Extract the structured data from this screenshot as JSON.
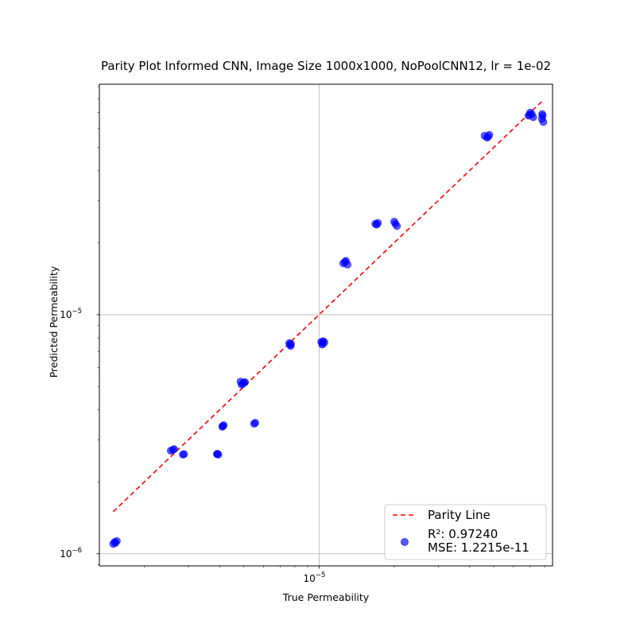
{
  "chart_data": {
    "type": "scatter",
    "title": "Parity Plot Informed CNN, Image Size 1000x1000, NoPoolCNN12, lr = 1e-02",
    "xlabel": "True Permeability",
    "ylabel": "Predicted Permeability",
    "xscale": "log",
    "yscale": "log",
    "xlim": [
      1.32e-06,
      8.6e-05
    ],
    "ylim": [
      8.9e-07,
      9.2e-05
    ],
    "xticks": [
      {
        "value": 1e-05,
        "base": "10",
        "exp": "−5"
      }
    ],
    "yticks": [
      {
        "value": 1e-06,
        "base": "10",
        "exp": "−6"
      },
      {
        "value": 1e-05,
        "base": "10",
        "exp": "−5"
      }
    ],
    "grid": true,
    "legend": {
      "placement": "lower-right",
      "entries": [
        {
          "type": "line",
          "label": "Parity Line",
          "color": "#ff0000",
          "dash": "dashed"
        },
        {
          "type": "marker",
          "label_lines": [
            "R²: 0.97240",
            "MSE: 1.2215e-11"
          ],
          "color": "#0000ff"
        }
      ]
    },
    "series": [
      {
        "type": "line",
        "color": "#ff0000",
        "x": [
          1.5e-06,
          7.8e-05
        ],
        "y": [
          1.5e-06,
          7.8e-05
        ]
      },
      {
        "type": "scatter",
        "color": "#0000ff",
        "alpha": 0.65,
        "x": [
          1.5e-06,
          1.52e-06,
          1.55e-06,
          1.53e-06,
          2.55e-06,
          2.6e-06,
          2.63e-06,
          2.85e-06,
          2.88e-06,
          3.9e-06,
          3.95e-06,
          3.92e-06,
          4.1e-06,
          4.15e-06,
          4.12e-06,
          4.85e-06,
          4.95e-06,
          5e-06,
          5.05e-06,
          4.9e-06,
          5.5e-06,
          5.55e-06,
          7.6e-06,
          7.7e-06,
          7.65e-06,
          7.72e-06,
          1.02e-05,
          1.03e-05,
          1.04e-05,
          1.05e-05,
          1.03e-05,
          1.25e-05,
          1.28e-05,
          1.3e-05,
          1.27e-05,
          1.68e-05,
          1.72e-05,
          1.7e-05,
          2e-05,
          2.05e-05,
          2.02e-05,
          4.6e-05,
          4.7e-05,
          4.8e-05,
          4.75e-05,
          6.9e-05,
          7e-05,
          7.1e-05,
          7.2e-05,
          6.95e-05,
          7.8e-05,
          7.85e-05,
          7.9e-05,
          7.82e-05
        ],
        "y": [
          1.1e-06,
          1.12e-06,
          1.13e-06,
          1.11e-06,
          2.7e-06,
          2.72e-06,
          2.74e-06,
          2.6e-06,
          2.61e-06,
          2.61e-06,
          2.6e-06,
          2.62e-06,
          3.4e-06,
          3.45e-06,
          3.42e-06,
          5.25e-06,
          5.15e-06,
          5.2e-06,
          5.22e-06,
          5.1e-06,
          3.5e-06,
          3.53e-06,
          7.6e-06,
          7.4e-06,
          7.5e-06,
          7.55e-06,
          7.7e-06,
          7.6e-06,
          7.75e-06,
          7.65e-06,
          7.5e-06,
          1.64e-05,
          1.68e-05,
          1.62e-05,
          1.66e-05,
          2.4e-05,
          2.42e-05,
          2.38e-05,
          2.45e-05,
          2.35e-05,
          2.4e-05,
          5.6e-05,
          5.5e-05,
          5.65e-05,
          5.55e-05,
          6.8e-05,
          7e-05,
          6.9e-05,
          6.7e-05,
          6.85e-05,
          6.6e-05,
          6.8e-05,
          6.4e-05,
          6.9e-05
        ]
      }
    ]
  }
}
